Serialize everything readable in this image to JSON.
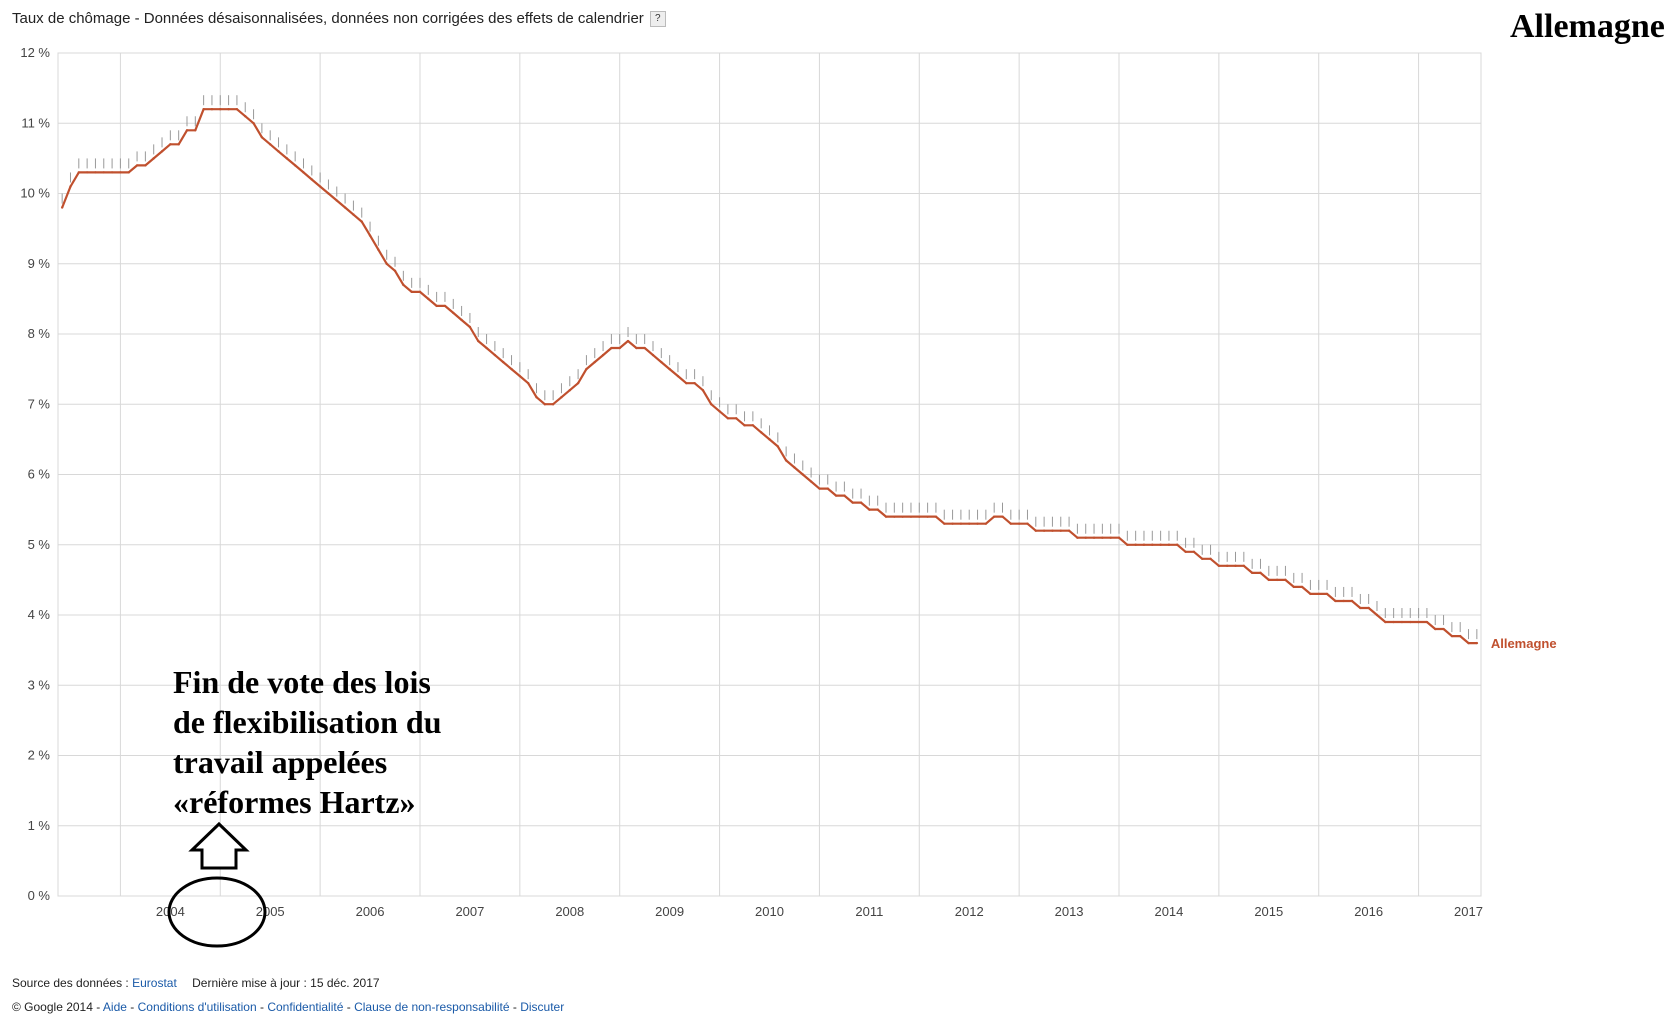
{
  "header": {
    "title": "Taux de chômage - Données désaisonnalisées, données non corrigées des effets de calendrier",
    "help_label": "?",
    "country": "Allemagne"
  },
  "annotation": {
    "lines": [
      "Fin de vote des lois",
      "de flexibilisation du",
      "travail appelées",
      "«réformes Hartz»"
    ]
  },
  "footer": {
    "source_label": "Source des données :",
    "source_link": "Eurostat",
    "updated": "Dernière mise à jour : 15 déc. 2017",
    "copyright": "© Google 2014 -",
    "links": [
      "Aide",
      "Conditions d'utilisation",
      "Confidentialité",
      "Clause de non-responsabilité",
      "Discuter"
    ],
    "separator": "-"
  },
  "colors": {
    "series": "#c0502e",
    "grid": "#d8d8d8",
    "ticks": "#999999"
  },
  "chart_data": {
    "type": "line",
    "title": "Taux de chômage - Données désaisonnalisées, données non corrigées des effets de calendrier",
    "ylim": [
      0,
      12
    ],
    "yticks": [
      "0 %",
      "1 %",
      "2 %",
      "3 %",
      "4 %",
      "5 %",
      "6 %",
      "7 %",
      "8 %",
      "9 %",
      "10 %",
      "11 %",
      "12 %"
    ],
    "xticks": [
      "2004",
      "2005",
      "2006",
      "2007",
      "2008",
      "2009",
      "2010",
      "2011",
      "2012",
      "2013",
      "2014",
      "2015",
      "2016",
      "2017"
    ],
    "grid": true,
    "legend_position": "right-end",
    "series": [
      {
        "name": "Allemagne",
        "points": [
          [
            "2003-06",
            9.8
          ],
          [
            "2003-07",
            10.1
          ],
          [
            "2003-08",
            10.3
          ],
          [
            "2003-09",
            10.3
          ],
          [
            "2003-10",
            10.3
          ],
          [
            "2003-11",
            10.3
          ],
          [
            "2003-12",
            10.3
          ],
          [
            "2004-01",
            10.3
          ],
          [
            "2004-02",
            10.3
          ],
          [
            "2004-03",
            10.4
          ],
          [
            "2004-04",
            10.4
          ],
          [
            "2004-05",
            10.5
          ],
          [
            "2004-06",
            10.6
          ],
          [
            "2004-07",
            10.7
          ],
          [
            "2004-08",
            10.7
          ],
          [
            "2004-09",
            10.9
          ],
          [
            "2004-10",
            10.9
          ],
          [
            "2004-11",
            11.2
          ],
          [
            "2004-12",
            11.2
          ],
          [
            "2005-01",
            11.2
          ],
          [
            "2005-02",
            11.2
          ],
          [
            "2005-03",
            11.2
          ],
          [
            "2005-04",
            11.1
          ],
          [
            "2005-05",
            11.0
          ],
          [
            "2005-06",
            10.8
          ],
          [
            "2005-07",
            10.7
          ],
          [
            "2005-08",
            10.6
          ],
          [
            "2005-09",
            10.5
          ],
          [
            "2005-10",
            10.4
          ],
          [
            "2005-11",
            10.3
          ],
          [
            "2005-12",
            10.2
          ],
          [
            "2006-01",
            10.1
          ],
          [
            "2006-02",
            10.0
          ],
          [
            "2006-03",
            9.9
          ],
          [
            "2006-04",
            9.8
          ],
          [
            "2006-05",
            9.7
          ],
          [
            "2006-06",
            9.6
          ],
          [
            "2006-07",
            9.4
          ],
          [
            "2006-08",
            9.2
          ],
          [
            "2006-09",
            9.0
          ],
          [
            "2006-10",
            8.9
          ],
          [
            "2006-11",
            8.7
          ],
          [
            "2006-12",
            8.6
          ],
          [
            "2007-01",
            8.6
          ],
          [
            "2007-02",
            8.5
          ],
          [
            "2007-03",
            8.4
          ],
          [
            "2007-04",
            8.4
          ],
          [
            "2007-05",
            8.3
          ],
          [
            "2007-06",
            8.2
          ],
          [
            "2007-07",
            8.1
          ],
          [
            "2007-08",
            7.9
          ],
          [
            "2007-09",
            7.8
          ],
          [
            "2007-10",
            7.7
          ],
          [
            "2007-11",
            7.6
          ],
          [
            "2007-12",
            7.5
          ],
          [
            "2008-01",
            7.4
          ],
          [
            "2008-02",
            7.3
          ],
          [
            "2008-03",
            7.1
          ],
          [
            "2008-04",
            7.0
          ],
          [
            "2008-05",
            7.0
          ],
          [
            "2008-06",
            7.1
          ],
          [
            "2008-07",
            7.2
          ],
          [
            "2008-08",
            7.3
          ],
          [
            "2008-09",
            7.5
          ],
          [
            "2008-10",
            7.6
          ],
          [
            "2008-11",
            7.7
          ],
          [
            "2008-12",
            7.8
          ],
          [
            "2009-01",
            7.8
          ],
          [
            "2009-02",
            7.9
          ],
          [
            "2009-03",
            7.8
          ],
          [
            "2009-04",
            7.8
          ],
          [
            "2009-05",
            7.7
          ],
          [
            "2009-06",
            7.6
          ],
          [
            "2009-07",
            7.5
          ],
          [
            "2009-08",
            7.4
          ],
          [
            "2009-09",
            7.3
          ],
          [
            "2009-10",
            7.3
          ],
          [
            "2009-11",
            7.2
          ],
          [
            "2009-12",
            7.0
          ],
          [
            "2010-01",
            6.9
          ],
          [
            "2010-02",
            6.8
          ],
          [
            "2010-03",
            6.8
          ],
          [
            "2010-04",
            6.7
          ],
          [
            "2010-05",
            6.7
          ],
          [
            "2010-06",
            6.6
          ],
          [
            "2010-07",
            6.5
          ],
          [
            "2010-08",
            6.4
          ],
          [
            "2010-09",
            6.2
          ],
          [
            "2010-10",
            6.1
          ],
          [
            "2010-11",
            6.0
          ],
          [
            "2010-12",
            5.9
          ],
          [
            "2011-01",
            5.8
          ],
          [
            "2011-02",
            5.8
          ],
          [
            "2011-03",
            5.7
          ],
          [
            "2011-04",
            5.7
          ],
          [
            "2011-05",
            5.6
          ],
          [
            "2011-06",
            5.6
          ],
          [
            "2011-07",
            5.5
          ],
          [
            "2011-08",
            5.5
          ],
          [
            "2011-09",
            5.4
          ],
          [
            "2011-10",
            5.4
          ],
          [
            "2011-11",
            5.4
          ],
          [
            "2011-12",
            5.4
          ],
          [
            "2012-01",
            5.4
          ],
          [
            "2012-02",
            5.4
          ],
          [
            "2012-03",
            5.4
          ],
          [
            "2012-04",
            5.3
          ],
          [
            "2012-05",
            5.3
          ],
          [
            "2012-06",
            5.3
          ],
          [
            "2012-07",
            5.3
          ],
          [
            "2012-08",
            5.3
          ],
          [
            "2012-09",
            5.3
          ],
          [
            "2012-10",
            5.4
          ],
          [
            "2012-11",
            5.4
          ],
          [
            "2012-12",
            5.3
          ],
          [
            "2013-01",
            5.3
          ],
          [
            "2013-02",
            5.3
          ],
          [
            "2013-03",
            5.2
          ],
          [
            "2013-04",
            5.2
          ],
          [
            "2013-05",
            5.2
          ],
          [
            "2013-06",
            5.2
          ],
          [
            "2013-07",
            5.2
          ],
          [
            "2013-08",
            5.1
          ],
          [
            "2013-09",
            5.1
          ],
          [
            "2013-10",
            5.1
          ],
          [
            "2013-11",
            5.1
          ],
          [
            "2013-12",
            5.1
          ],
          [
            "2014-01",
            5.1
          ],
          [
            "2014-02",
            5.0
          ],
          [
            "2014-03",
            5.0
          ],
          [
            "2014-04",
            5.0
          ],
          [
            "2014-05",
            5.0
          ],
          [
            "2014-06",
            5.0
          ],
          [
            "2014-07",
            5.0
          ],
          [
            "2014-08",
            5.0
          ],
          [
            "2014-09",
            4.9
          ],
          [
            "2014-10",
            4.9
          ],
          [
            "2014-11",
            4.8
          ],
          [
            "2014-12",
            4.8
          ],
          [
            "2015-01",
            4.7
          ],
          [
            "2015-02",
            4.7
          ],
          [
            "2015-03",
            4.7
          ],
          [
            "2015-04",
            4.7
          ],
          [
            "2015-05",
            4.6
          ],
          [
            "2015-06",
            4.6
          ],
          [
            "2015-07",
            4.5
          ],
          [
            "2015-08",
            4.5
          ],
          [
            "2015-09",
            4.5
          ],
          [
            "2015-10",
            4.4
          ],
          [
            "2015-11",
            4.4
          ],
          [
            "2015-12",
            4.3
          ],
          [
            "2016-01",
            4.3
          ],
          [
            "2016-02",
            4.3
          ],
          [
            "2016-03",
            4.2
          ],
          [
            "2016-04",
            4.2
          ],
          [
            "2016-05",
            4.2
          ],
          [
            "2016-06",
            4.1
          ],
          [
            "2016-07",
            4.1
          ],
          [
            "2016-08",
            4.0
          ],
          [
            "2016-09",
            3.9
          ],
          [
            "2016-10",
            3.9
          ],
          [
            "2016-11",
            3.9
          ],
          [
            "2016-12",
            3.9
          ],
          [
            "2017-01",
            3.9
          ],
          [
            "2017-02",
            3.9
          ],
          [
            "2017-03",
            3.8
          ],
          [
            "2017-04",
            3.8
          ],
          [
            "2017-05",
            3.7
          ],
          [
            "2017-06",
            3.7
          ],
          [
            "2017-07",
            3.6
          ],
          [
            "2017-08",
            3.6
          ]
        ]
      }
    ]
  }
}
